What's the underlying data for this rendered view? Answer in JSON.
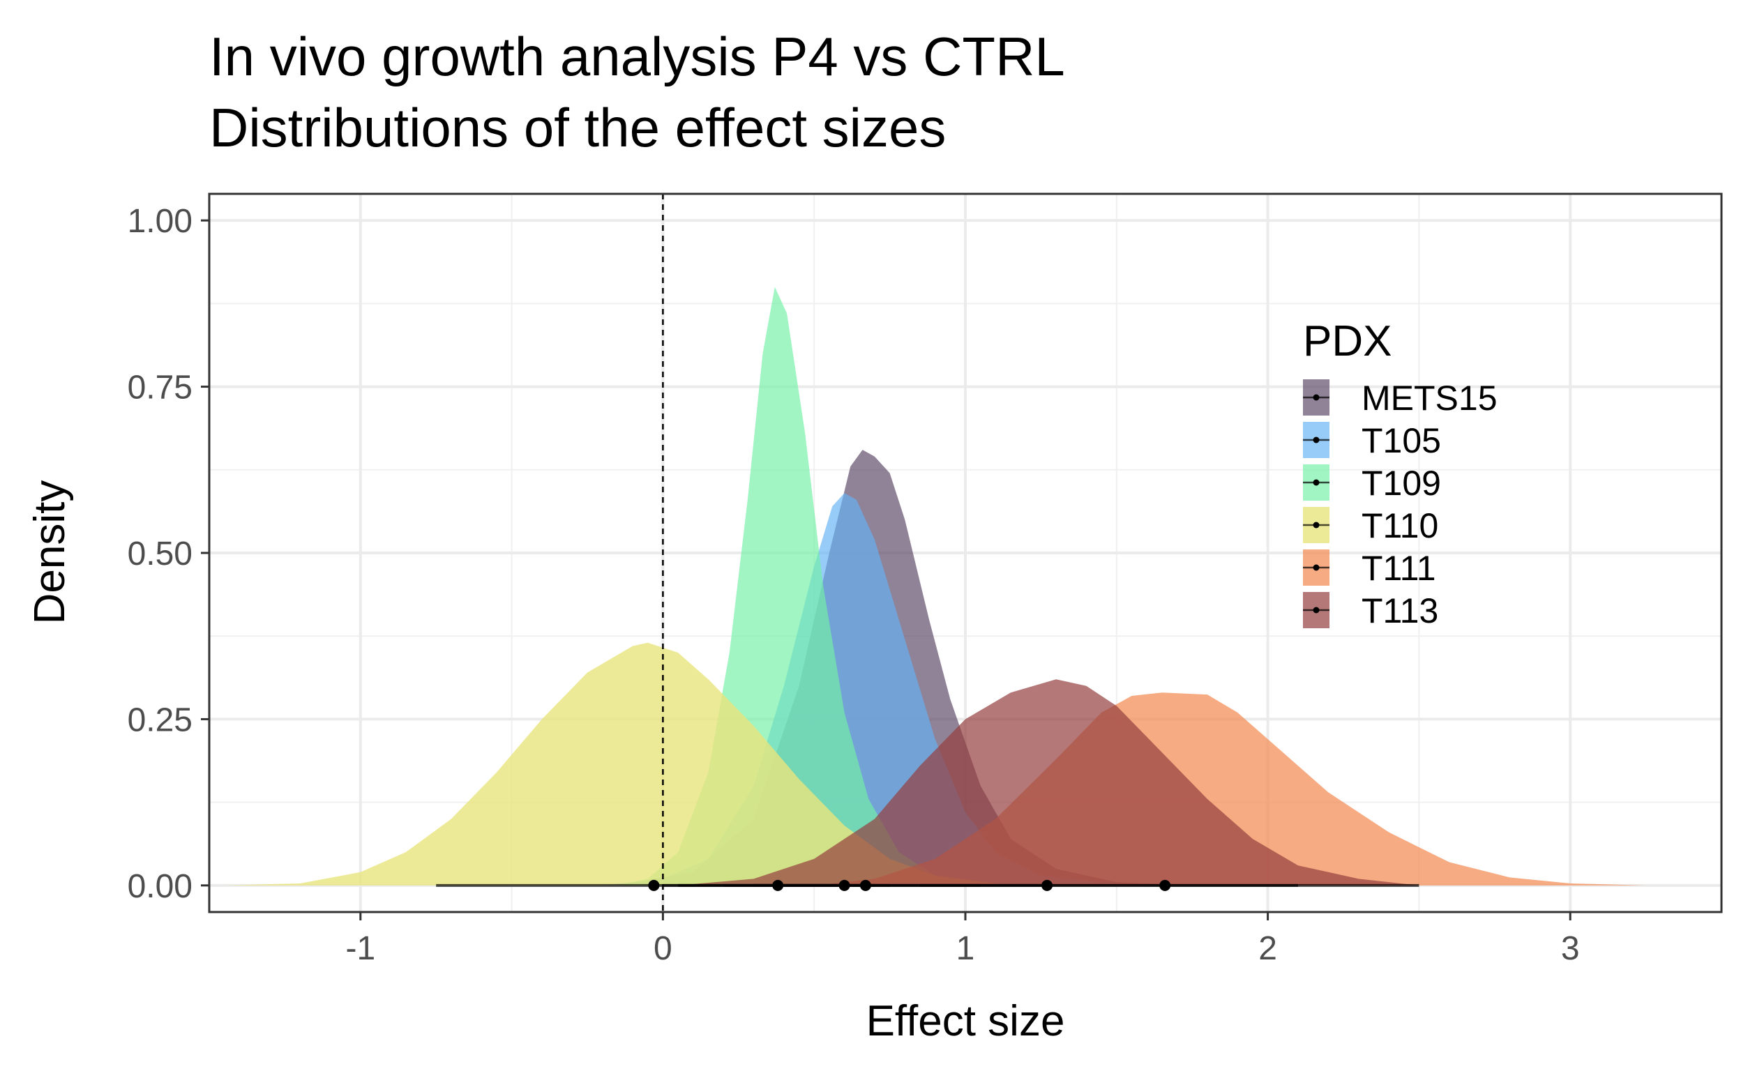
{
  "chart_data": {
    "type": "area",
    "title": "In vivo growth analysis P4 vs CTRL",
    "subtitle": "Distributions of the effect sizes",
    "xlabel": "Effect size",
    "ylabel": "Density",
    "xlim": [
      -1.5,
      3.5
    ],
    "ylim": [
      -0.04,
      1.04
    ],
    "x_ticks": [
      -1,
      0,
      1,
      2,
      3
    ],
    "x_tick_labels": [
      "-1",
      "0",
      "1",
      "2",
      "3"
    ],
    "y_ticks": [
      0,
      0.25,
      0.5,
      0.75,
      1.0
    ],
    "y_tick_labels": [
      "0.00",
      "0.25",
      "0.50",
      "0.75",
      "1.00"
    ],
    "grid": true,
    "reference_line": {
      "x": 0,
      "style": "dashed"
    },
    "legend": {
      "title": "PDX",
      "placement": "right-inside"
    },
    "series": [
      {
        "name": "METS15",
        "color": "#5c4766",
        "opacity": 0.68,
        "point": 0.67,
        "interval": [
          0.2,
          1.25
        ],
        "density": [
          [
            -0.15,
            0
          ],
          [
            0.1,
            0.02
          ],
          [
            0.3,
            0.1
          ],
          [
            0.45,
            0.3
          ],
          [
            0.55,
            0.5
          ],
          [
            0.62,
            0.63
          ],
          [
            0.66,
            0.655
          ],
          [
            0.7,
            0.645
          ],
          [
            0.75,
            0.62
          ],
          [
            0.8,
            0.55
          ],
          [
            0.88,
            0.4
          ],
          [
            0.95,
            0.28
          ],
          [
            1.05,
            0.15
          ],
          [
            1.15,
            0.07
          ],
          [
            1.3,
            0.025
          ],
          [
            1.5,
            0.005
          ],
          [
            1.75,
            0
          ]
        ]
      },
      {
        "name": "T105",
        "color": "#66b3f5",
        "opacity": 0.68,
        "point": 0.6,
        "interval": [
          0.05,
          1.05
        ],
        "density": [
          [
            -0.2,
            0
          ],
          [
            0.0,
            0.01
          ],
          [
            0.15,
            0.04
          ],
          [
            0.3,
            0.15
          ],
          [
            0.4,
            0.3
          ],
          [
            0.5,
            0.48
          ],
          [
            0.56,
            0.57
          ],
          [
            0.6,
            0.59
          ],
          [
            0.64,
            0.58
          ],
          [
            0.7,
            0.52
          ],
          [
            0.8,
            0.37
          ],
          [
            0.9,
            0.22
          ],
          [
            1.0,
            0.11
          ],
          [
            1.1,
            0.05
          ],
          [
            1.25,
            0.015
          ],
          [
            1.5,
            0.002
          ],
          [
            1.65,
            0
          ]
        ]
      },
      {
        "name": "T109",
        "color": "#73f0a6",
        "opacity": 0.68,
        "point": 0.38,
        "interval": [
          0.0,
          0.75
        ],
        "density": [
          [
            -0.15,
            0
          ],
          [
            -0.05,
            0.01
          ],
          [
            0.05,
            0.05
          ],
          [
            0.15,
            0.17
          ],
          [
            0.22,
            0.35
          ],
          [
            0.28,
            0.58
          ],
          [
            0.33,
            0.8
          ],
          [
            0.37,
            0.9
          ],
          [
            0.41,
            0.86
          ],
          [
            0.47,
            0.68
          ],
          [
            0.53,
            0.45
          ],
          [
            0.6,
            0.26
          ],
          [
            0.68,
            0.13
          ],
          [
            0.78,
            0.05
          ],
          [
            0.9,
            0.015
          ],
          [
            1.05,
            0.002
          ],
          [
            1.15,
            0
          ]
        ]
      },
      {
        "name": "T110",
        "color": "#e8e57d",
        "opacity": 0.8,
        "point": -0.03,
        "interval": [
          -0.75,
          0.7
        ],
        "density": [
          [
            -1.45,
            0
          ],
          [
            -1.2,
            0.003
          ],
          [
            -1.0,
            0.02
          ],
          [
            -0.85,
            0.05
          ],
          [
            -0.7,
            0.1
          ],
          [
            -0.55,
            0.17
          ],
          [
            -0.4,
            0.25
          ],
          [
            -0.25,
            0.32
          ],
          [
            -0.1,
            0.36
          ],
          [
            -0.05,
            0.365
          ],
          [
            0.05,
            0.35
          ],
          [
            0.15,
            0.31
          ],
          [
            0.3,
            0.24
          ],
          [
            0.45,
            0.16
          ],
          [
            0.6,
            0.09
          ],
          [
            0.75,
            0.04
          ],
          [
            0.9,
            0.015
          ],
          [
            1.1,
            0.003
          ],
          [
            1.3,
            0
          ]
        ]
      },
      {
        "name": "T111",
        "color": "#f28a52",
        "opacity": 0.72,
        "point": 1.66,
        "interval": [
          0.85,
          2.5
        ],
        "density": [
          [
            0.5,
            0
          ],
          [
            0.7,
            0.01
          ],
          [
            0.9,
            0.04
          ],
          [
            1.1,
            0.1
          ],
          [
            1.3,
            0.19
          ],
          [
            1.45,
            0.26
          ],
          [
            1.55,
            0.285
          ],
          [
            1.65,
            0.29
          ],
          [
            1.8,
            0.287
          ],
          [
            1.9,
            0.26
          ],
          [
            2.05,
            0.2
          ],
          [
            2.2,
            0.14
          ],
          [
            2.4,
            0.08
          ],
          [
            2.6,
            0.035
          ],
          [
            2.8,
            0.012
          ],
          [
            3.0,
            0.003
          ],
          [
            3.25,
            0
          ]
        ]
      },
      {
        "name": "T113",
        "color": "#963f3f",
        "opacity": 0.7,
        "point": 1.27,
        "interval": [
          0.3,
          2.1
        ],
        "density": [
          [
            0.05,
            0
          ],
          [
            0.3,
            0.01
          ],
          [
            0.5,
            0.04
          ],
          [
            0.7,
            0.1
          ],
          [
            0.85,
            0.18
          ],
          [
            1.0,
            0.25
          ],
          [
            1.15,
            0.29
          ],
          [
            1.3,
            0.31
          ],
          [
            1.4,
            0.3
          ],
          [
            1.5,
            0.27
          ],
          [
            1.65,
            0.2
          ],
          [
            1.8,
            0.13
          ],
          [
            1.95,
            0.07
          ],
          [
            2.1,
            0.03
          ],
          [
            2.3,
            0.01
          ],
          [
            2.5,
            0
          ]
        ]
      }
    ]
  }
}
